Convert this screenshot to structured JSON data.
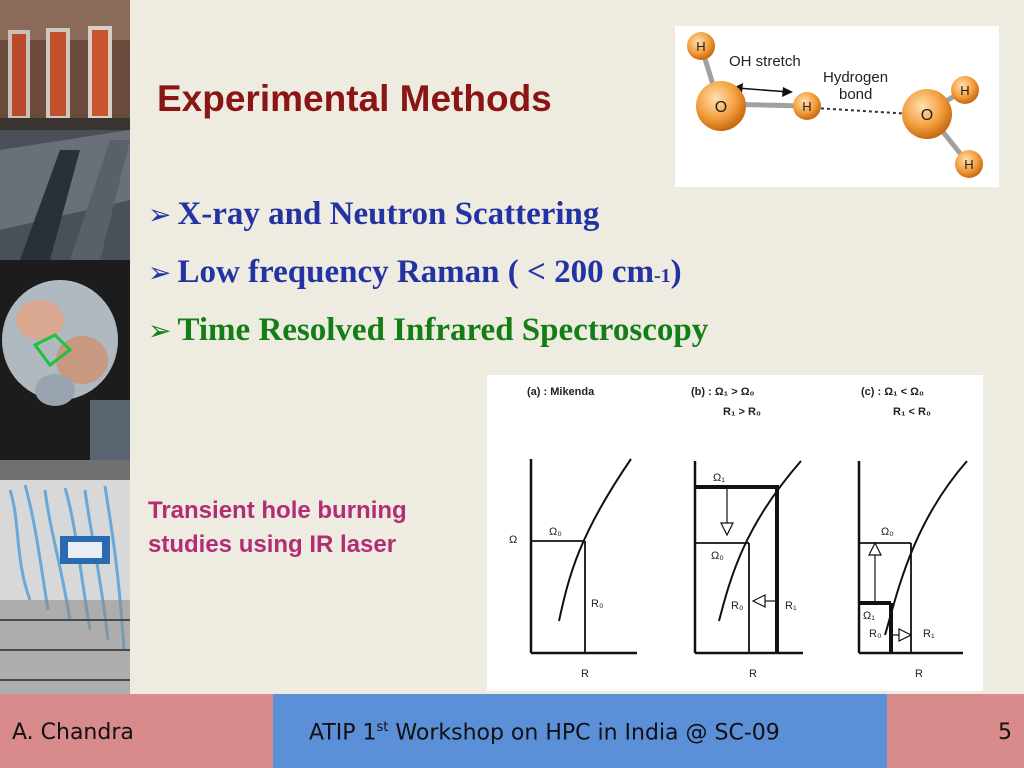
{
  "slide": {
    "title": "Experimental Methods",
    "bullets": [
      {
        "marker": "➢",
        "text": "X-ray and Neutron Scattering"
      },
      {
        "marker": "➢",
        "text": "Low frequency Raman ( < 200 cm",
        "sup": "-1",
        "after": ")"
      },
      {
        "marker": "➢",
        "text": "Time Resolved Infrared Spectroscopy"
      }
    ],
    "note": "Transient hole burning studies using IR laser"
  },
  "molecule_diagram": {
    "atoms": [
      "H",
      "O",
      "H",
      "O",
      "H",
      "H"
    ],
    "label_stretch": "OH stretch",
    "label_hbond_1": "Hydrogen",
    "label_hbond_2": "bond"
  },
  "hole_burning_diagram": {
    "panel_a_title": "(a) : Mikenda",
    "panel_b_title": "(b) : Ω₁ > Ω₀",
    "panel_b_cond": "R₁ > R₀",
    "panel_c_title": "(c) : Ω₁ < Ω₀",
    "panel_c_cond": "R₁ < R₀",
    "omega": "Ω",
    "omega0": "Ω₀",
    "omega1": "Ω₁",
    "r0": "R₀",
    "r1": "R₁",
    "r_axis": "R"
  },
  "footer": {
    "author": "A. Chandra",
    "event_pre": "ATIP 1",
    "event_sup": "st",
    "event_post": " Workshop on HPC in India @ SC-09",
    "page": "5"
  },
  "colors": {
    "background": "#eeebe0",
    "title": "#8b1414",
    "bullet_blue": "#2433a3",
    "bullet_green": "#137d16",
    "note": "#b22d74",
    "footer_side": "#d98a8a",
    "footer_mid": "#5b8fd8"
  }
}
